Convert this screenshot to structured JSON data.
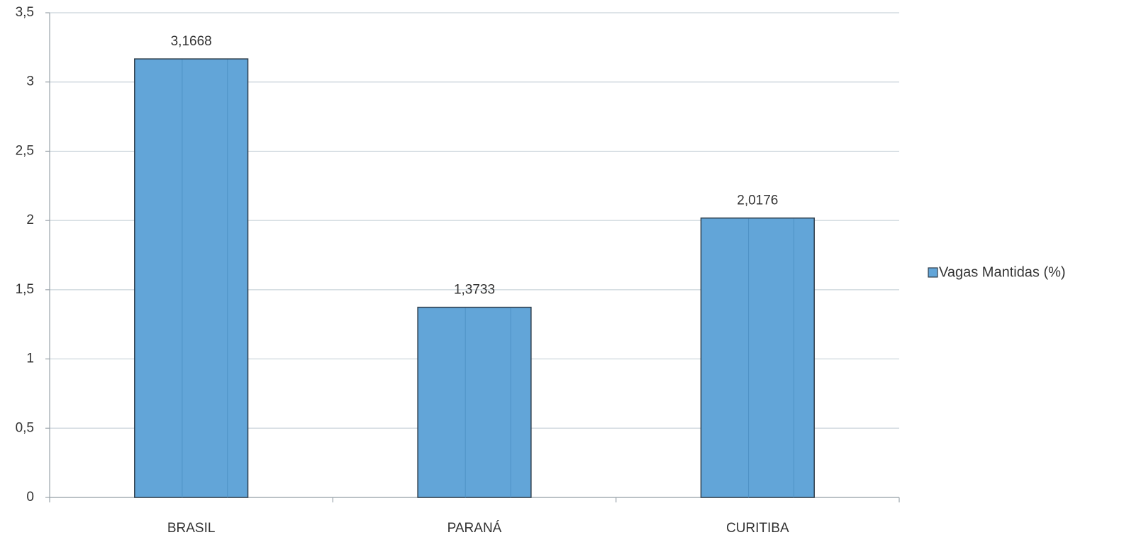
{
  "chart_data": {
    "type": "bar",
    "categories": [
      "BRASIL",
      "PARANÁ",
      "CURITIBA"
    ],
    "series": [
      {
        "name": "Vagas Mantidas (%)",
        "color": "#62a5d8",
        "values": [
          3.1668,
          1.3733,
          2.0176
        ],
        "value_labels": [
          "3,1668",
          "1,3733",
          "2,0176"
        ]
      }
    ],
    "ylim": [
      0,
      3.5
    ],
    "yticks": [
      0,
      {
        "value": 0.5,
        "label": "0,5"
      },
      1,
      {
        "value": 1.5,
        "label": "1,5"
      },
      2,
      {
        "value": 2.5,
        "label": "2,5"
      },
      3,
      {
        "value": 3.5,
        "label": "3,5"
      }
    ],
    "grid": true,
    "legend": "right"
  }
}
